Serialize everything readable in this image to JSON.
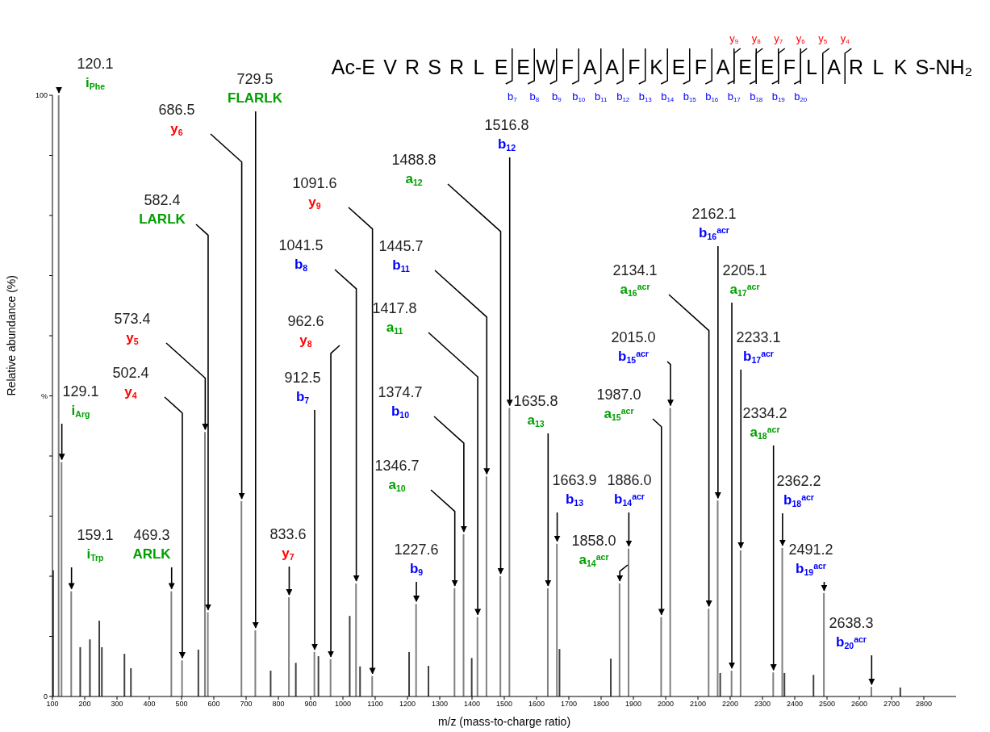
{
  "chart_data": {
    "type": "bar",
    "title": "Ac-E V R S R L E E W F A A F K E F A E E F L A R L K S-NH₂",
    "xlabel": "m/z (mass-to-charge ratio)",
    "ylabel": "Relative abundance (%)",
    "xlim": [
      100,
      2900
    ],
    "xticks": [
      100,
      200,
      300,
      400,
      500,
      600,
      700,
      800,
      900,
      1000,
      1100,
      1200,
      1300,
      1400,
      1500,
      1600,
      1700,
      1800,
      1900,
      2000,
      2100,
      2200,
      2300,
      2400,
      2500,
      2600,
      2700,
      2800
    ],
    "ylim": [
      0,
      100
    ],
    "yticks": [
      0,
      {
        "value": 10,
        "label": null
      },
      {
        "value": 20,
        "label": null
      },
      {
        "value": 30,
        "label": null
      },
      {
        "value": 40,
        "label": null
      },
      {
        "value": 50,
        "label": "%"
      },
      {
        "value": 60,
        "label": null
      },
      {
        "value": 70,
        "label": null
      },
      {
        "value": 80,
        "label": null
      },
      {
        "value": 90,
        "label": null
      },
      100
    ],
    "series": [
      {
        "color": "#404040",
        "x": [
          103,
          187,
          217,
          246,
          254,
          324,
          344,
          553,
          777,
          855,
          925,
          1022,
          1054,
          1206,
          1266,
          1400,
          1672,
          1831,
          2170,
          2369,
          2459,
          2728
        ],
        "values": [
          21,
          8.2,
          9.5,
          12.6,
          8.2,
          7.1,
          4.7,
          7.8,
          4.3,
          5.6,
          6.7,
          13.4,
          5,
          7.4,
          5.1,
          6.4,
          7.9,
          6.3,
          3.9,
          3.9,
          3.6,
          1.5
        ]
      },
      {
        "color": "#808080",
        "x": [
          120.1,
          129.1,
          159.1,
          469.3,
          502.4,
          573.4,
          582.4,
          686.5,
          729.5,
          833.6,
          912.5,
          962.6,
          1041.5,
          1091.6,
          1227.6,
          1346.7,
          1374.7,
          1417.8,
          1445.7,
          1488.8,
          1516.8,
          1635.8,
          1663.9,
          1858.0,
          1886.0,
          1987.0,
          2015.0,
          2134.1,
          2162.1,
          2205.1,
          2233.1,
          2334.2,
          2362.2,
          2491.2,
          2638.3
        ],
        "values": [
          100,
          39,
          17.5,
          17.5,
          6,
          44,
          14,
          32.5,
          11,
          16.5,
          7.4,
          6.2,
          18.8,
          3.4,
          15.4,
          18,
          27,
          13.2,
          36.6,
          20,
          48,
          18,
          25.4,
          18.8,
          24.6,
          13.2,
          48,
          14.6,
          32.6,
          4.3,
          24.3,
          4,
          24.7,
          17.2,
          1.6
        ]
      }
    ],
    "annotations": [
      "y$_{9}$",
      "y$_{8}$",
      "y$_{7}$",
      "y$_{6}$",
      "y$_{5}$",
      "y$_{4}$",
      "b$_{7}$",
      "b$_{8}$",
      "b$_{9}$",
      "b$_{10}$",
      "b$_{11}$",
      "b$_{12}$",
      "b$_{13}$",
      "b$_{14}$",
      "b$_{15}$",
      "b$_{16}$",
      "b$_{17}$",
      "b$_{18}$",
      "b$_{19}$",
      "b$_{20}$",
      {
        "text": "120.1\ni$_{Phe}$",
        "x": 120.1,
        "y": 100
      },
      {
        "text": "129.1\ni$_{Arg}$",
        "x": 129.1,
        "y": 39
      },
      {
        "text": "159.1\ni$_{Trp}$",
        "x": 159.1,
        "y": 17.5
      },
      {
        "text": "469.3\nARLK",
        "x": 469.3,
        "y": 17.5
      },
      {
        "text": "502.4\ny$_{4}$",
        "x": 502.4,
        "y": 6
      },
      {
        "text": "573.4\ny$_{5}$",
        "x": 573.4,
        "y": 44
      },
      {
        "text": "582.4\nLARLK",
        "x": 582.4,
        "y": 14
      },
      {
        "text": "686.5\ny$_{6}$",
        "x": 686.5,
        "y": 32.5
      },
      {
        "text": "729.5\nFLARLK",
        "x": 729.5,
        "y": 11
      },
      {
        "text": "833.6\ny$_{7}$",
        "x": 833.6,
        "y": 16.5
      },
      {
        "text": "912.5\nb$_{7}$",
        "x": 912.5,
        "y": 7.4
      },
      {
        "text": "962.6\ny$_{8}$",
        "x": 962.6,
        "y": 6.2
      },
      {
        "text": "1041.5\nb$_{8}$",
        "x": 1041.5,
        "y": 18.8
      },
      {
        "text": "1091.6\ny$_{9}$",
        "x": 1091.6,
        "y": 3.4
      },
      {
        "text": "1227.6\nb$_{9}$",
        "x": 1227.6,
        "y": 15.4
      },
      {
        "text": "1346.7\na$_{10}$",
        "x": 1346.7,
        "y": 18
      },
      {
        "text": "1374.7\nb$_{10}$",
        "x": 1374.7,
        "y": 27
      },
      {
        "text": "1417.8\na$_{11}$",
        "x": 1417.8,
        "y": 13.2
      },
      {
        "text": "1445.7\nb$_{11}$",
        "x": 1445.7,
        "y": 36.6
      },
      {
        "text": "1488.8\na$_{12}$",
        "x": 1488.8,
        "y": 20
      },
      {
        "text": "1516.8\nb$_{12}$",
        "x": 1516.8,
        "y": 48
      },
      {
        "text": "1635.8\na$_{13}$",
        "x": 1635.8,
        "y": 18
      },
      {
        "text": "1663.9\nb$_{13}$",
        "x": 1663.9,
        "y": 25.4
      },
      {
        "text": "1858.0\na$_{14}$$^{acr}$",
        "x": 1858.0,
        "y": 18.8
      },
      {
        "text": "1886.0\nb$_{14}$$^{acr}$",
        "x": 1886.0,
        "y": 24.6
      },
      {
        "text": "1987.0\na$_{15}$$^{acr}$",
        "x": 1987.0,
        "y": 13.2
      },
      {
        "text": "2015.0\nb$_{15}$$^{acr}$",
        "x": 2015.0,
        "y": 48
      },
      {
        "text": "2134.1\na$_{16}$$^{acr}$",
        "x": 2134.1,
        "y": 14.6
      },
      {
        "text": "2162.1\nb$_{16}$$^{acr}$",
        "x": 2162.1,
        "y": 32.6
      },
      {
        "text": "2205.1\na$_{17}$$^{acr}$",
        "x": 2205.1,
        "y": 4.3
      },
      {
        "text": "2233.1\nb$_{17}$$^{acr}$",
        "x": 2233.1,
        "y": 24.3
      },
      {
        "text": "2334.2\na$_{18}$$^{acr}$",
        "x": 2334.2,
        "y": 4
      },
      {
        "text": "2362.2\nb$_{18}$$^{acr}$",
        "x": 2362.2,
        "y": 24.7
      },
      {
        "text": "2491.2\nb$_{19}$$^{acr}$",
        "x": 2491.2,
        "y": 17.2
      },
      {
        "text": "2638.3\nb$_{20}$$^{acr}$",
        "x": 2638.3,
        "y": 1.6
      }
    ]
  }
}
